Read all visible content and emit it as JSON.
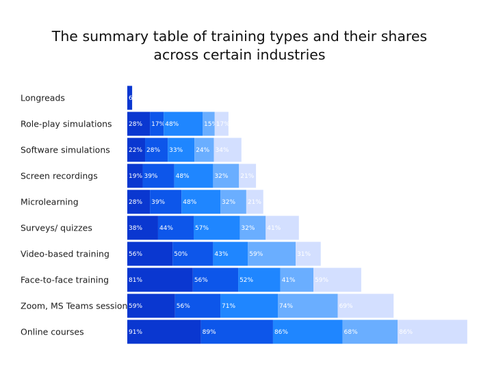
{
  "chart_data": {
    "type": "bar",
    "orientation": "horizontal",
    "stacked": true,
    "title_lines": [
      "The summary table of training types and their shares",
      "across certain industries"
    ],
    "categories": [
      "Longreads",
      "Role-play simulations",
      "Software simulations",
      "Screen recordings",
      "Microlearning",
      "Surveys/ quizzes",
      "Video-based training",
      "Face-to-face training",
      "Zoom, MS Teams sessions",
      "Online courses"
    ],
    "series": [
      {
        "color": "#0a37d0",
        "values": [
          6,
          28,
          22,
          19,
          28,
          38,
          56,
          81,
          59,
          91
        ]
      },
      {
        "color": "#0d56ea",
        "values": [
          null,
          17,
          28,
          39,
          39,
          44,
          50,
          56,
          56,
          89
        ]
      },
      {
        "color": "#1f86ff",
        "values": [
          null,
          48,
          33,
          48,
          48,
          57,
          43,
          52,
          71,
          86
        ]
      },
      {
        "color": "#6aaeff",
        "values": [
          null,
          15,
          24,
          32,
          32,
          32,
          59,
          41,
          74,
          68
        ]
      },
      {
        "color": "#d3dfff",
        "values": [
          null,
          17,
          34,
          21,
          21,
          41,
          31,
          59,
          69,
          86
        ]
      }
    ],
    "value_suffix": "%",
    "legend": "none",
    "grid": false
  }
}
